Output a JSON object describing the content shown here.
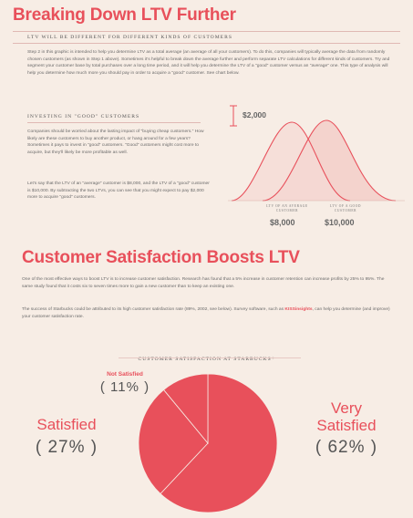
{
  "section1": {
    "title": "Breaking Down LTV Further",
    "subtitle": "LTV will be different for different kinds of customers",
    "paragraph": "Step 2 in this graphic is intended to help you determine LTV as a total average (an average of all your customers). To do this, companies will typically average the data from randomly chosen customers (as shown in Step 1 above). Sometimes it's helpful to break down the average further and perform separate LTV calculations for different kinds of customers. Try and segment your customer base by total purchases over a long time period, and it will help you determine the LTV of a \"good\" customer versus an \"average\" one. This type of analysis will help you determine how much more you should pay in order to acquire a \"good\" customer. See chart below."
  },
  "investing": {
    "heading": "Investing in \"good\" customers",
    "para1": "Companies should be worried about the lasting impact of \"buying cheap customers.\" How likely are these customers to buy another product, or hang around for a few years? Sometimes it pays to invest in \"good\" customers. \"Good\" customers might cost more to acquire, but they'll likely be more profitable as well.",
    "para2": "Let's say that the LTV of an \"average\" customer is $8,000, and the LTV of a \"good\" customer is $10,000. By subtracting the two LTVs, you can see that you might expect to pay $2,000 more to acquire \"good\" customers."
  },
  "ltv_chart": {
    "difference_label": "$2,000",
    "average_label": "LTV of an average customer",
    "good_label": "LTV of a good customer",
    "average_value": "$8,000",
    "good_value": "$10,000",
    "curve_color": "#e8505b",
    "fill_color": "#f3c9c4"
  },
  "section2": {
    "title": "Customer Satisfaction Boosts LTV",
    "para1": "One of the most effective ways to boost LTV is to increase customer satisfaction. Research has found that a 5% increase in customer retention can increase profits by 25% to 95%. The same study found that it costs six to seven times more to gain a new customer than to keep an existing one.",
    "para2_before": "The success of Starbucks could be attributed to its high customer satisfaction rate (89%, 2002, see below). Survey software, such as ",
    "para2_link": "KISSinsights",
    "para2_after": ", can help you determine (and improve) your customer satisfaction rate."
  },
  "pie_title": "Customer satisfaction at Starbucks*",
  "chart_data": {
    "type": "pie",
    "title": "Customer satisfaction at Starbucks*",
    "labels": [
      "Not Satisfied",
      "Satisfied",
      "Very Satisfied"
    ],
    "values": [
      11,
      27,
      62
    ],
    "display": [
      "( 11% )",
      "( 27% )",
      "( 62% )"
    ],
    "color": "#e8505b"
  },
  "colors": {
    "accent": "#e8505b",
    "background": "#f7ede5"
  }
}
